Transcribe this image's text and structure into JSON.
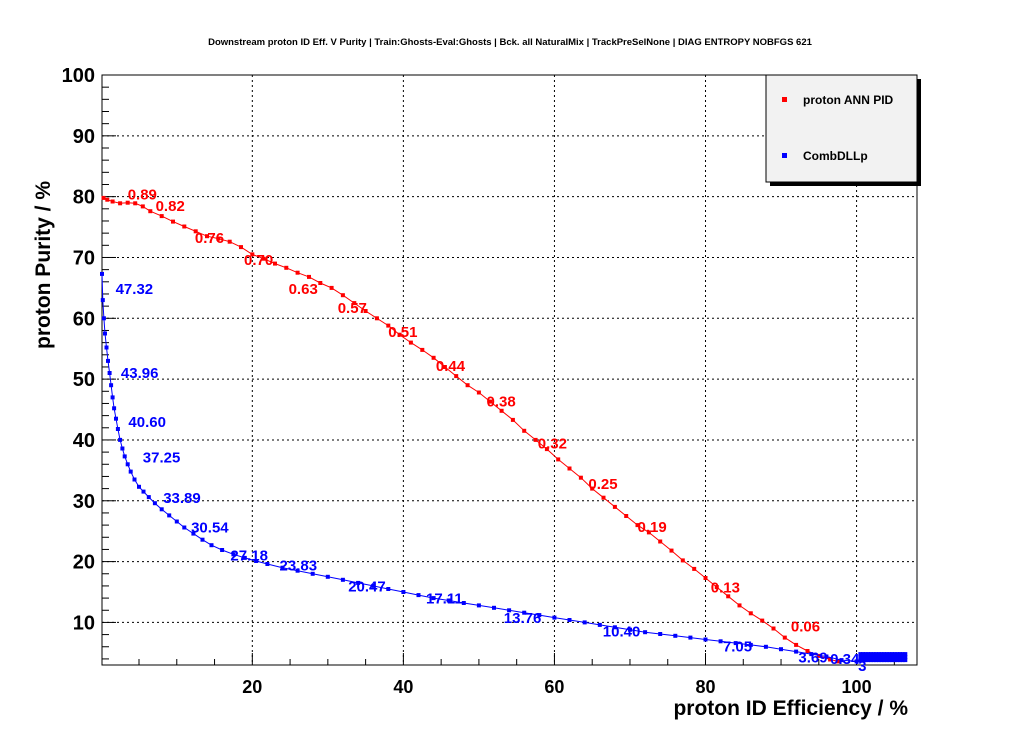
{
  "chart_data": {
    "type": "line",
    "title": "Downstream proton ID Eff. V Purity | Train:Ghosts-Eval:Ghosts | Bck. all NaturalMix | TrackPreSelNone | DIAG ENTROPY NOBFGS 621",
    "xlabel": "proton ID Efficiency / %",
    "ylabel": "proton Purity / %",
    "xlim": [
      0.1,
      108
    ],
    "ylim": [
      3,
      100
    ],
    "x_ticks": [
      20,
      40,
      60,
      80,
      100
    ],
    "y_ticks": [
      10,
      20,
      30,
      40,
      50,
      60,
      70,
      80,
      90,
      100
    ],
    "grid": true,
    "legend_position": "top-right",
    "series": [
      {
        "name": "proton ANN PID",
        "color": "#ff0000",
        "points": [
          [
            0.3,
            79.8
          ],
          [
            0.8,
            79.5
          ],
          [
            1.5,
            79.2
          ],
          [
            2.5,
            78.9
          ],
          [
            3.5,
            79.0
          ],
          [
            4.5,
            78.9
          ],
          [
            5.5,
            78.4
          ],
          [
            6.5,
            77.6
          ],
          [
            8,
            76.8
          ],
          [
            9.5,
            75.9
          ],
          [
            11,
            75.1
          ],
          [
            12.5,
            74.3
          ],
          [
            14,
            73.5
          ],
          [
            15.5,
            73.1
          ],
          [
            17,
            72.6
          ],
          [
            18.5,
            71.7
          ],
          [
            20,
            70.5
          ],
          [
            21.5,
            69.8
          ],
          [
            23,
            69.0
          ],
          [
            24.5,
            68.3
          ],
          [
            26,
            67.5
          ],
          [
            27.5,
            66.8
          ],
          [
            29,
            65.8
          ],
          [
            30.5,
            65.0
          ],
          [
            32,
            63.8
          ],
          [
            33.5,
            62.5
          ],
          [
            35,
            61.2
          ],
          [
            36.5,
            60.0
          ],
          [
            38,
            58.8
          ],
          [
            39.5,
            57.3
          ],
          [
            41,
            56.0
          ],
          [
            42.5,
            54.8
          ],
          [
            44,
            53.5
          ],
          [
            45.5,
            52.0
          ],
          [
            47,
            50.5
          ],
          [
            48.5,
            49.0
          ],
          [
            50,
            47.8
          ],
          [
            51.5,
            46.3
          ],
          [
            53,
            44.8
          ],
          [
            54.5,
            43.3
          ],
          [
            56,
            41.5
          ],
          [
            57.5,
            40.0
          ],
          [
            59,
            38.5
          ],
          [
            60.5,
            36.8
          ],
          [
            62,
            35.3
          ],
          [
            63.5,
            33.8
          ],
          [
            65,
            32.0
          ],
          [
            66.5,
            30.5
          ],
          [
            68,
            29.0
          ],
          [
            69.5,
            27.5
          ],
          [
            71,
            26.0
          ],
          [
            72.5,
            24.8
          ],
          [
            74,
            23.3
          ],
          [
            75.5,
            21.8
          ],
          [
            77,
            20.2
          ],
          [
            78.5,
            18.8
          ],
          [
            80,
            17.3
          ],
          [
            81.5,
            15.8
          ],
          [
            83,
            14.3
          ],
          [
            84.5,
            12.8
          ],
          [
            86,
            11.5
          ],
          [
            87.5,
            10.3
          ],
          [
            89,
            9.0
          ],
          [
            90.5,
            7.5
          ],
          [
            92,
            6.3
          ],
          [
            93.5,
            5.3
          ],
          [
            95,
            4.5
          ],
          [
            96.5,
            3.9
          ],
          [
            97.5,
            3.6
          ]
        ],
        "labels": [
          {
            "x": 3.5,
            "y": 79.5,
            "text": "0.89"
          },
          {
            "x": 7.2,
            "y": 77.6,
            "text": "0.82"
          },
          {
            "x": 12.4,
            "y": 72.4,
            "text": "0.76"
          },
          {
            "x": 18.9,
            "y": 68.8,
            "text": "0.70"
          },
          {
            "x": 24.8,
            "y": 64.0,
            "text": "0.63"
          },
          {
            "x": 31.3,
            "y": 60.9,
            "text": "0.57"
          },
          {
            "x": 38.0,
            "y": 56.9,
            "text": "0.51"
          },
          {
            "x": 44.3,
            "y": 51.3,
            "text": "0.44"
          },
          {
            "x": 51.0,
            "y": 45.5,
            "text": "0.38"
          },
          {
            "x": 57.8,
            "y": 38.6,
            "text": "0.32"
          },
          {
            "x": 64.5,
            "y": 31.9,
            "text": "0.25"
          },
          {
            "x": 71.0,
            "y": 24.9,
            "text": "0.19"
          },
          {
            "x": 80.7,
            "y": 14.9,
            "text": "0.13"
          },
          {
            "x": 91.3,
            "y": 8.5,
            "text": "0.06"
          }
        ]
      },
      {
        "name": "CombDLLp",
        "color": "#0000ff",
        "points": [
          [
            0.1,
            67.3
          ],
          [
            0.2,
            63.0
          ],
          [
            0.35,
            60.0
          ],
          [
            0.5,
            57.5
          ],
          [
            0.7,
            55.2
          ],
          [
            0.9,
            53.0
          ],
          [
            1.1,
            51.0
          ],
          [
            1.3,
            49.0
          ],
          [
            1.5,
            47.0
          ],
          [
            1.7,
            45.2
          ],
          [
            1.95,
            43.5
          ],
          [
            2.2,
            41.8
          ],
          [
            2.5,
            40.0
          ],
          [
            2.8,
            38.6
          ],
          [
            3.1,
            37.3
          ],
          [
            3.5,
            36.0
          ],
          [
            3.9,
            34.8
          ],
          [
            4.4,
            33.5
          ],
          [
            5.0,
            32.3
          ],
          [
            5.6,
            31.5
          ],
          [
            6.3,
            30.6
          ],
          [
            7.1,
            29.6
          ],
          [
            8.0,
            28.6
          ],
          [
            9.0,
            27.6
          ],
          [
            10.0,
            26.6
          ],
          [
            11.0,
            25.6
          ],
          [
            12.2,
            24.6
          ],
          [
            13.4,
            23.6
          ],
          [
            14.6,
            22.7
          ],
          [
            16.0,
            21.9
          ],
          [
            17.5,
            21.2
          ],
          [
            19.0,
            20.6
          ],
          [
            20.5,
            20.1
          ],
          [
            22.0,
            19.6
          ],
          [
            24.0,
            19.0
          ],
          [
            26.0,
            18.5
          ],
          [
            28.0,
            18.0
          ],
          [
            30.0,
            17.5
          ],
          [
            32.0,
            17.0
          ],
          [
            34.0,
            16.5
          ],
          [
            36.0,
            16.0
          ],
          [
            38.0,
            15.5
          ],
          [
            40.0,
            15.0
          ],
          [
            42.0,
            14.5
          ],
          [
            44.0,
            14.0
          ],
          [
            46.0,
            13.6
          ],
          [
            48.0,
            13.2
          ],
          [
            50.0,
            12.8
          ],
          [
            52.0,
            12.4
          ],
          [
            54.0,
            12.0
          ],
          [
            56.0,
            11.6
          ],
          [
            58.0,
            11.2
          ],
          [
            60.0,
            10.8
          ],
          [
            62.0,
            10.4
          ],
          [
            64.0,
            10.0
          ],
          [
            66.0,
            9.6
          ],
          [
            68.0,
            9.2
          ],
          [
            70.0,
            8.8
          ],
          [
            72.0,
            8.4
          ],
          [
            74.0,
            8.1
          ],
          [
            76.0,
            7.8
          ],
          [
            78.0,
            7.5
          ],
          [
            80.0,
            7.2
          ],
          [
            82.0,
            6.9
          ],
          [
            84.0,
            6.6
          ],
          [
            86.0,
            6.3
          ],
          [
            88.0,
            6.0
          ],
          [
            90.0,
            5.6
          ],
          [
            92.0,
            5.2
          ],
          [
            94.0,
            4.8
          ],
          [
            96.0,
            4.4
          ],
          [
            98.0,
            3.8
          ],
          [
            100.0,
            3.6
          ]
        ],
        "labels": [
          {
            "x": 1.9,
            "y": 64.0,
            "text": "47.32"
          },
          {
            "x": 2.6,
            "y": 50.2,
            "text": "43.96"
          },
          {
            "x": 3.6,
            "y": 42.1,
            "text": "40.60"
          },
          {
            "x": 5.5,
            "y": 36.3,
            "text": "37.25"
          },
          {
            "x": 8.2,
            "y": 29.6,
            "text": "33.89"
          },
          {
            "x": 11.9,
            "y": 24.8,
            "text": "30.54"
          },
          {
            "x": 17.1,
            "y": 20.2,
            "text": "27.18"
          },
          {
            "x": 23.6,
            "y": 18.5,
            "text": "23.83"
          },
          {
            "x": 32.7,
            "y": 15.1,
            "text": "20.47"
          },
          {
            "x": 43.0,
            "y": 13.1,
            "text": "17.11"
          },
          {
            "x": 53.3,
            "y": 9.9,
            "text": "13.76"
          },
          {
            "x": 66.4,
            "y": 7.7,
            "text": "10.40"
          },
          {
            "x": 82.3,
            "y": 5.2,
            "text": "7.05"
          },
          {
            "x": 92.3,
            "y": 3.4,
            "text": "3.69"
          },
          {
            "x": 96.5,
            "y": 3.2,
            "text": "0.34"
          },
          {
            "x": 100.2,
            "y": 2.0,
            "text": "3"
          }
        ],
        "cluster": {
          "x_from": 100.5,
          "x_to": 106.5,
          "y_center": 4.3
        }
      }
    ]
  }
}
